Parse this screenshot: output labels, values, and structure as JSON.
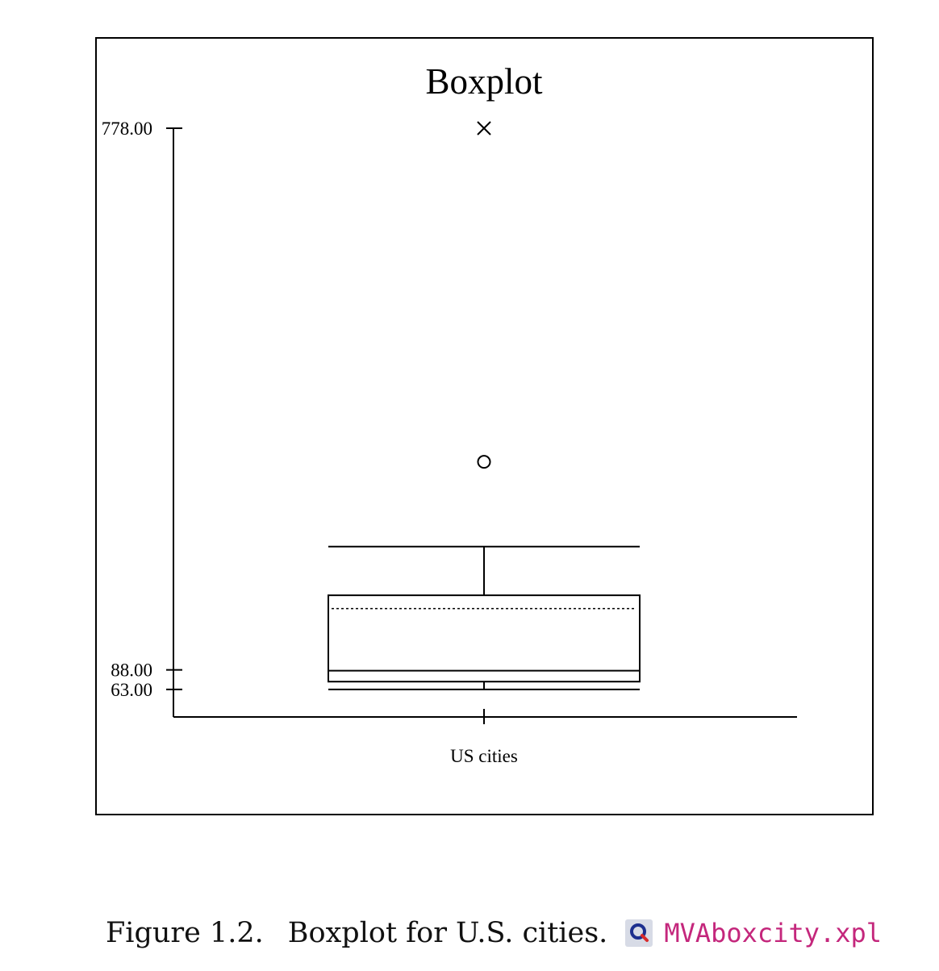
{
  "chart_data": {
    "type": "boxplot",
    "title": "Boxplot",
    "xlabel": "",
    "ylabel": "",
    "categories": [
      "US cities"
    ],
    "y_ticks": [
      {
        "value": 778.0,
        "label": "778.00"
      },
      {
        "value": 88.0,
        "label": "88.00"
      },
      {
        "value": 63.0,
        "label": "63.00"
      }
    ],
    "boxes": [
      {
        "category": "US cities",
        "lower_whisker": 63.0,
        "q1": 73.0,
        "median": 87.0,
        "q3": 183.0,
        "mean": 166.0,
        "upper_whisker": 245.0,
        "outliers": [
          {
            "value": 353.0,
            "marker": "circle"
          },
          {
            "value": 778.0,
            "marker": "cross"
          }
        ]
      }
    ],
    "ylim": [
      28.0,
      778.0
    ],
    "grid": false,
    "legend": "none"
  },
  "caption": {
    "label": "Figure 1.2.",
    "text": "Boxplot for U.S. cities.",
    "icon": "quantlet-search-icon",
    "file": "MVAboxcity.xpl",
    "file_color": "#c4277c"
  }
}
